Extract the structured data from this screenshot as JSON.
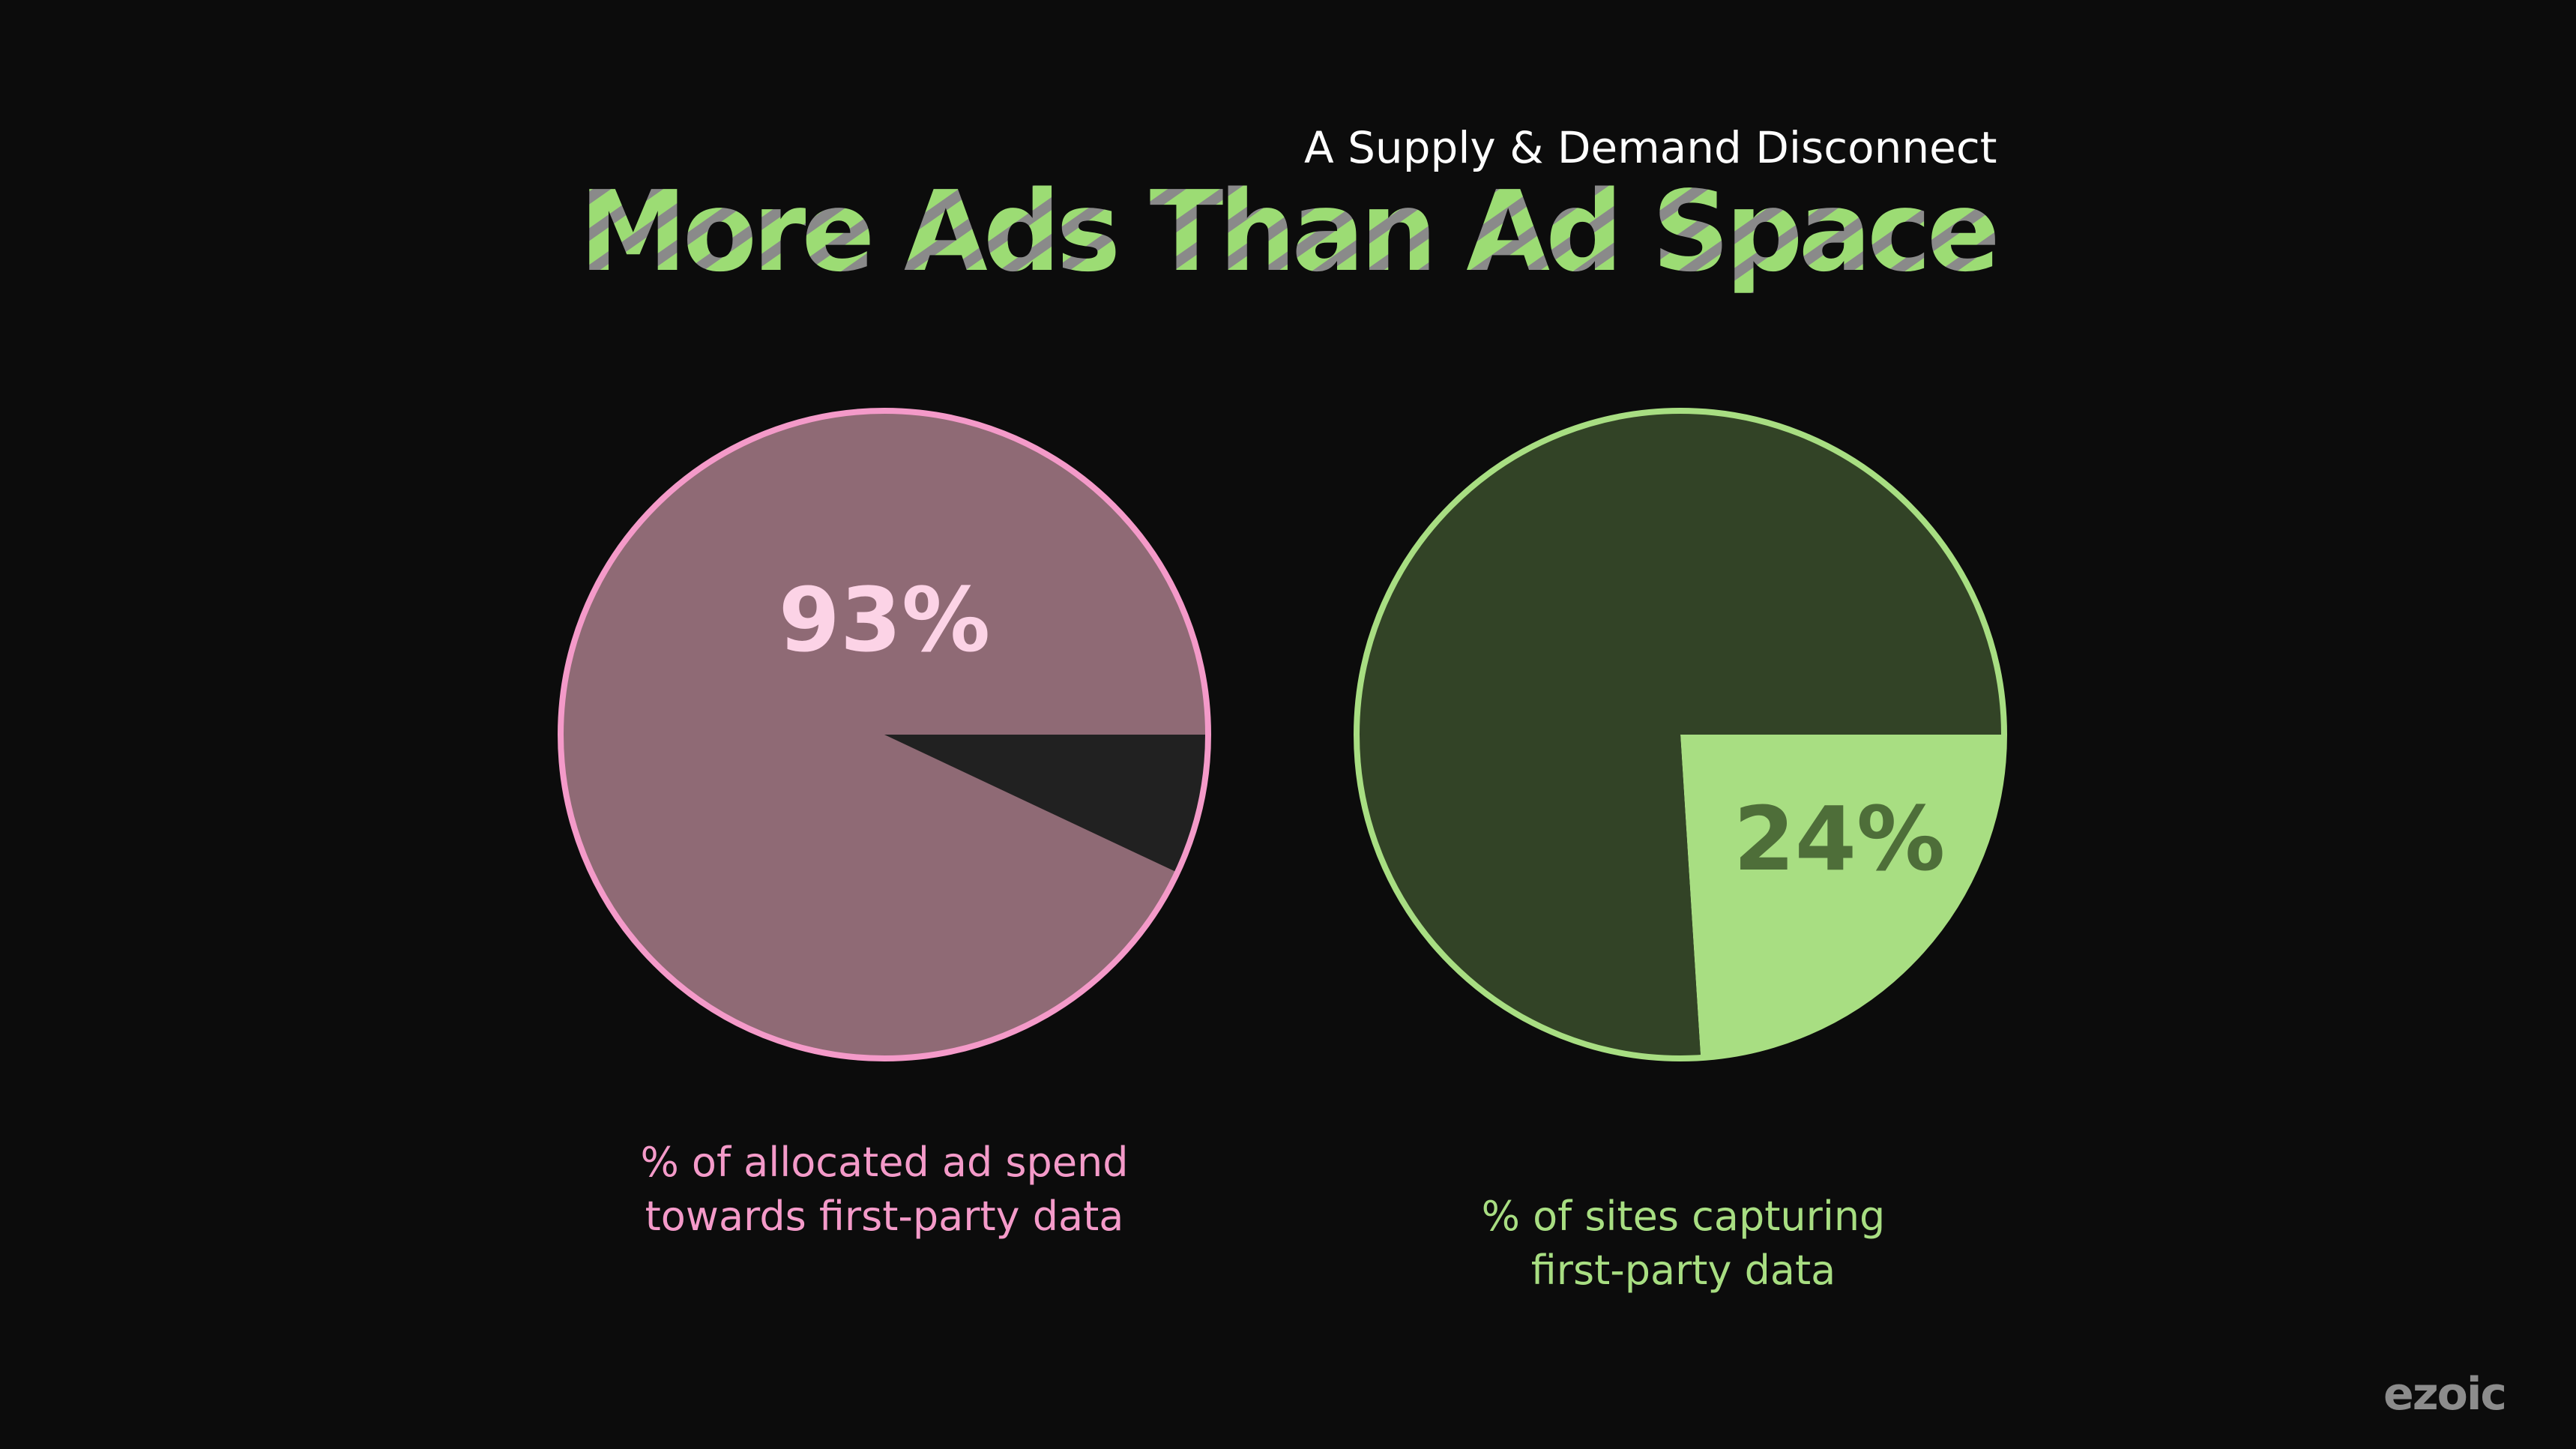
{
  "subtitle": "A Supply & Demand Disconnect",
  "title": "More Ads Than Ad Space",
  "brand": "ezoic",
  "colors": {
    "background": "#0c0c0c",
    "pink_outline": "#f49ac9",
    "pink_fill": "#8f6a75",
    "pink_label": "#fcd3e6",
    "pink_remainder": "#212121",
    "green_outline": "#a8de82",
    "green_fill": "#324326",
    "green_slice": "#a8de82",
    "green_label": "#4e6e39",
    "title_green": "#9cdc74",
    "title_gray": "#8a8a8a"
  },
  "chart_data": [
    {
      "type": "pie",
      "label": "93%",
      "slices": [
        {
          "value": 93
        },
        {
          "value": 7
        }
      ],
      "caption": [
        "% of allocated ad spend",
        "towards first-party data"
      ]
    },
    {
      "type": "pie",
      "label": "24%",
      "slices": [
        {
          "value": 76
        },
        {
          "value": 24
        }
      ],
      "caption": [
        "% of sites capturing",
        "first-party data"
      ]
    }
  ]
}
